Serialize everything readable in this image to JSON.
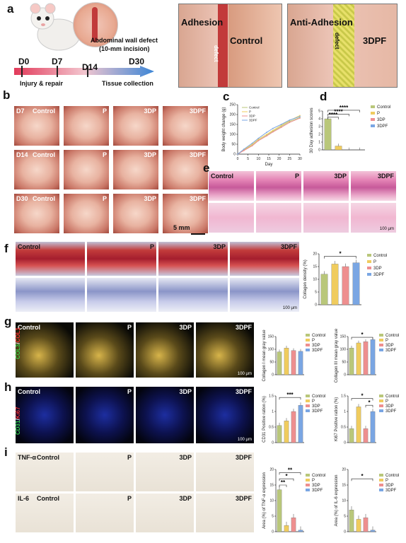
{
  "panels": {
    "a": "a",
    "b": "b",
    "c": "c",
    "d": "d",
    "e": "e",
    "f": "f",
    "g": "g",
    "h": "h",
    "i": "i"
  },
  "panel_a": {
    "timeline": [
      "D0",
      "D7",
      "D14",
      "D30"
    ],
    "injury": "Injury & repair",
    "collection": "Tissue collection",
    "defect_title": "Abdominal wall defect",
    "defect_sub": "(10-mm incision)",
    "adhesion": "Adhesion",
    "anti_adhesion": "Anti-Adhesion",
    "defect": "defect",
    "control": "Control",
    "tdpf": "3DPF"
  },
  "groups": [
    "Control",
    "P",
    "3DP",
    "3DPF"
  ],
  "colors": {
    "control": "#b9c77a",
    "p": "#f0cc5e",
    "tdp": "#ee8f8f",
    "tdpf": "#7aa6e3"
  },
  "panel_b": {
    "rows": [
      "D7",
      "D14",
      "D30"
    ],
    "scale": "5 mm"
  },
  "scale_100": "100 μm",
  "stain_g": {
    "a": "COL3",
    "b": "COL1"
  },
  "stain_h": {
    "a": "CD31",
    "b": "Ki67"
  },
  "stain_i": [
    "TNF-α",
    "IL-6"
  ],
  "star4": "****",
  "star3": "***",
  "star2": "**",
  "star1": "*",
  "chart_data": [
    {
      "id": "c",
      "type": "line",
      "xlabel": "Day",
      "ylabel": "Body weight change (g)",
      "x": [
        0,
        3,
        7,
        10,
        14,
        17,
        21,
        25,
        30
      ],
      "xticks": [
        0,
        5,
        10,
        15,
        20,
        25,
        30
      ],
      "yticks": [
        0,
        50,
        100,
        150,
        200,
        250
      ],
      "ylim": [
        0,
        250
      ],
      "series": [
        {
          "name": "Control",
          "values": [
            0,
            20,
            45,
            70,
            95,
            115,
            140,
            165,
            185
          ]
        },
        {
          "name": "P",
          "values": [
            0,
            22,
            50,
            75,
            100,
            120,
            145,
            170,
            195
          ]
        },
        {
          "name": "3DP",
          "values": [
            0,
            18,
            42,
            68,
            92,
            112,
            135,
            160,
            182
          ]
        },
        {
          "name": "3DPF",
          "values": [
            0,
            25,
            55,
            80,
            110,
            130,
            150,
            172,
            190
          ]
        }
      ]
    },
    {
      "id": "d",
      "type": "bar",
      "ylabel": "30 Day adhesion scores",
      "yticks": [
        0,
        1,
        2,
        3,
        4,
        5
      ],
      "ylim": [
        0,
        5
      ],
      "categories": [
        "Control",
        "P",
        "3DP",
        "3DPF"
      ],
      "values": [
        4.0,
        0.5,
        0,
        0
      ]
    },
    {
      "id": "f",
      "type": "bar",
      "ylabel": "Collagen density (%)",
      "yticks": [
        0,
        5,
        10,
        15,
        20
      ],
      "ylim": [
        0,
        20
      ],
      "categories": [
        "Control",
        "P",
        "3DP",
        "3DPF"
      ],
      "values": [
        12,
        16,
        15,
        16.5
      ]
    },
    {
      "id": "g1",
      "type": "bar",
      "ylabel": "Collagen I mean gray value",
      "yticks": [
        0,
        50,
        100,
        150
      ],
      "ylim": [
        0,
        150
      ],
      "categories": [
        "Control",
        "P",
        "3DP",
        "3DPF"
      ],
      "values": [
        90,
        105,
        95,
        92
      ]
    },
    {
      "id": "g2",
      "type": "bar",
      "ylabel": "Collagen III mean gray value",
      "yticks": [
        0,
        50,
        100,
        150
      ],
      "ylim": [
        0,
        150
      ],
      "categories": [
        "Control",
        "P",
        "3DP",
        "3DPF"
      ],
      "values": [
        105,
        125,
        130,
        138
      ]
    },
    {
      "id": "h1",
      "type": "bar",
      "ylabel": "CD31 Positive ration (%)",
      "yticks": [
        0.0,
        0.5,
        1.0,
        1.5
      ],
      "ylim": [
        0,
        1.5
      ],
      "categories": [
        "Control",
        "P",
        "3DP",
        "3DPF"
      ],
      "values": [
        0.55,
        0.7,
        1.0,
        1.2
      ]
    },
    {
      "id": "h2",
      "type": "bar",
      "ylabel": "Ki67 Positive ration (%)",
      "yticks": [
        0.0,
        0.5,
        1.0,
        1.5
      ],
      "ylim": [
        0,
        1.5
      ],
      "categories": [
        "Control",
        "P",
        "3DP",
        "3DPF"
      ],
      "values": [
        0.45,
        1.15,
        0.45,
        1.0
      ]
    },
    {
      "id": "i1",
      "type": "bar",
      "ylabel": "Area (%) of TNF-α expression",
      "yticks": [
        0,
        5,
        10,
        15,
        20
      ],
      "ylim": [
        0,
        20
      ],
      "categories": [
        "Control",
        "P",
        "3DP",
        "3DPF"
      ],
      "values": [
        13.5,
        2.0,
        4.5,
        0.5
      ]
    },
    {
      "id": "i2",
      "type": "bar",
      "ylabel": "Area (%) of IL-6 expression",
      "yticks": [
        0,
        5,
        10,
        15,
        20
      ],
      "ylim": [
        0,
        20
      ],
      "categories": [
        "Control",
        "P",
        "3DP",
        "3DPF"
      ],
      "values": [
        7.0,
        4.0,
        4.5,
        0.5
      ]
    }
  ]
}
